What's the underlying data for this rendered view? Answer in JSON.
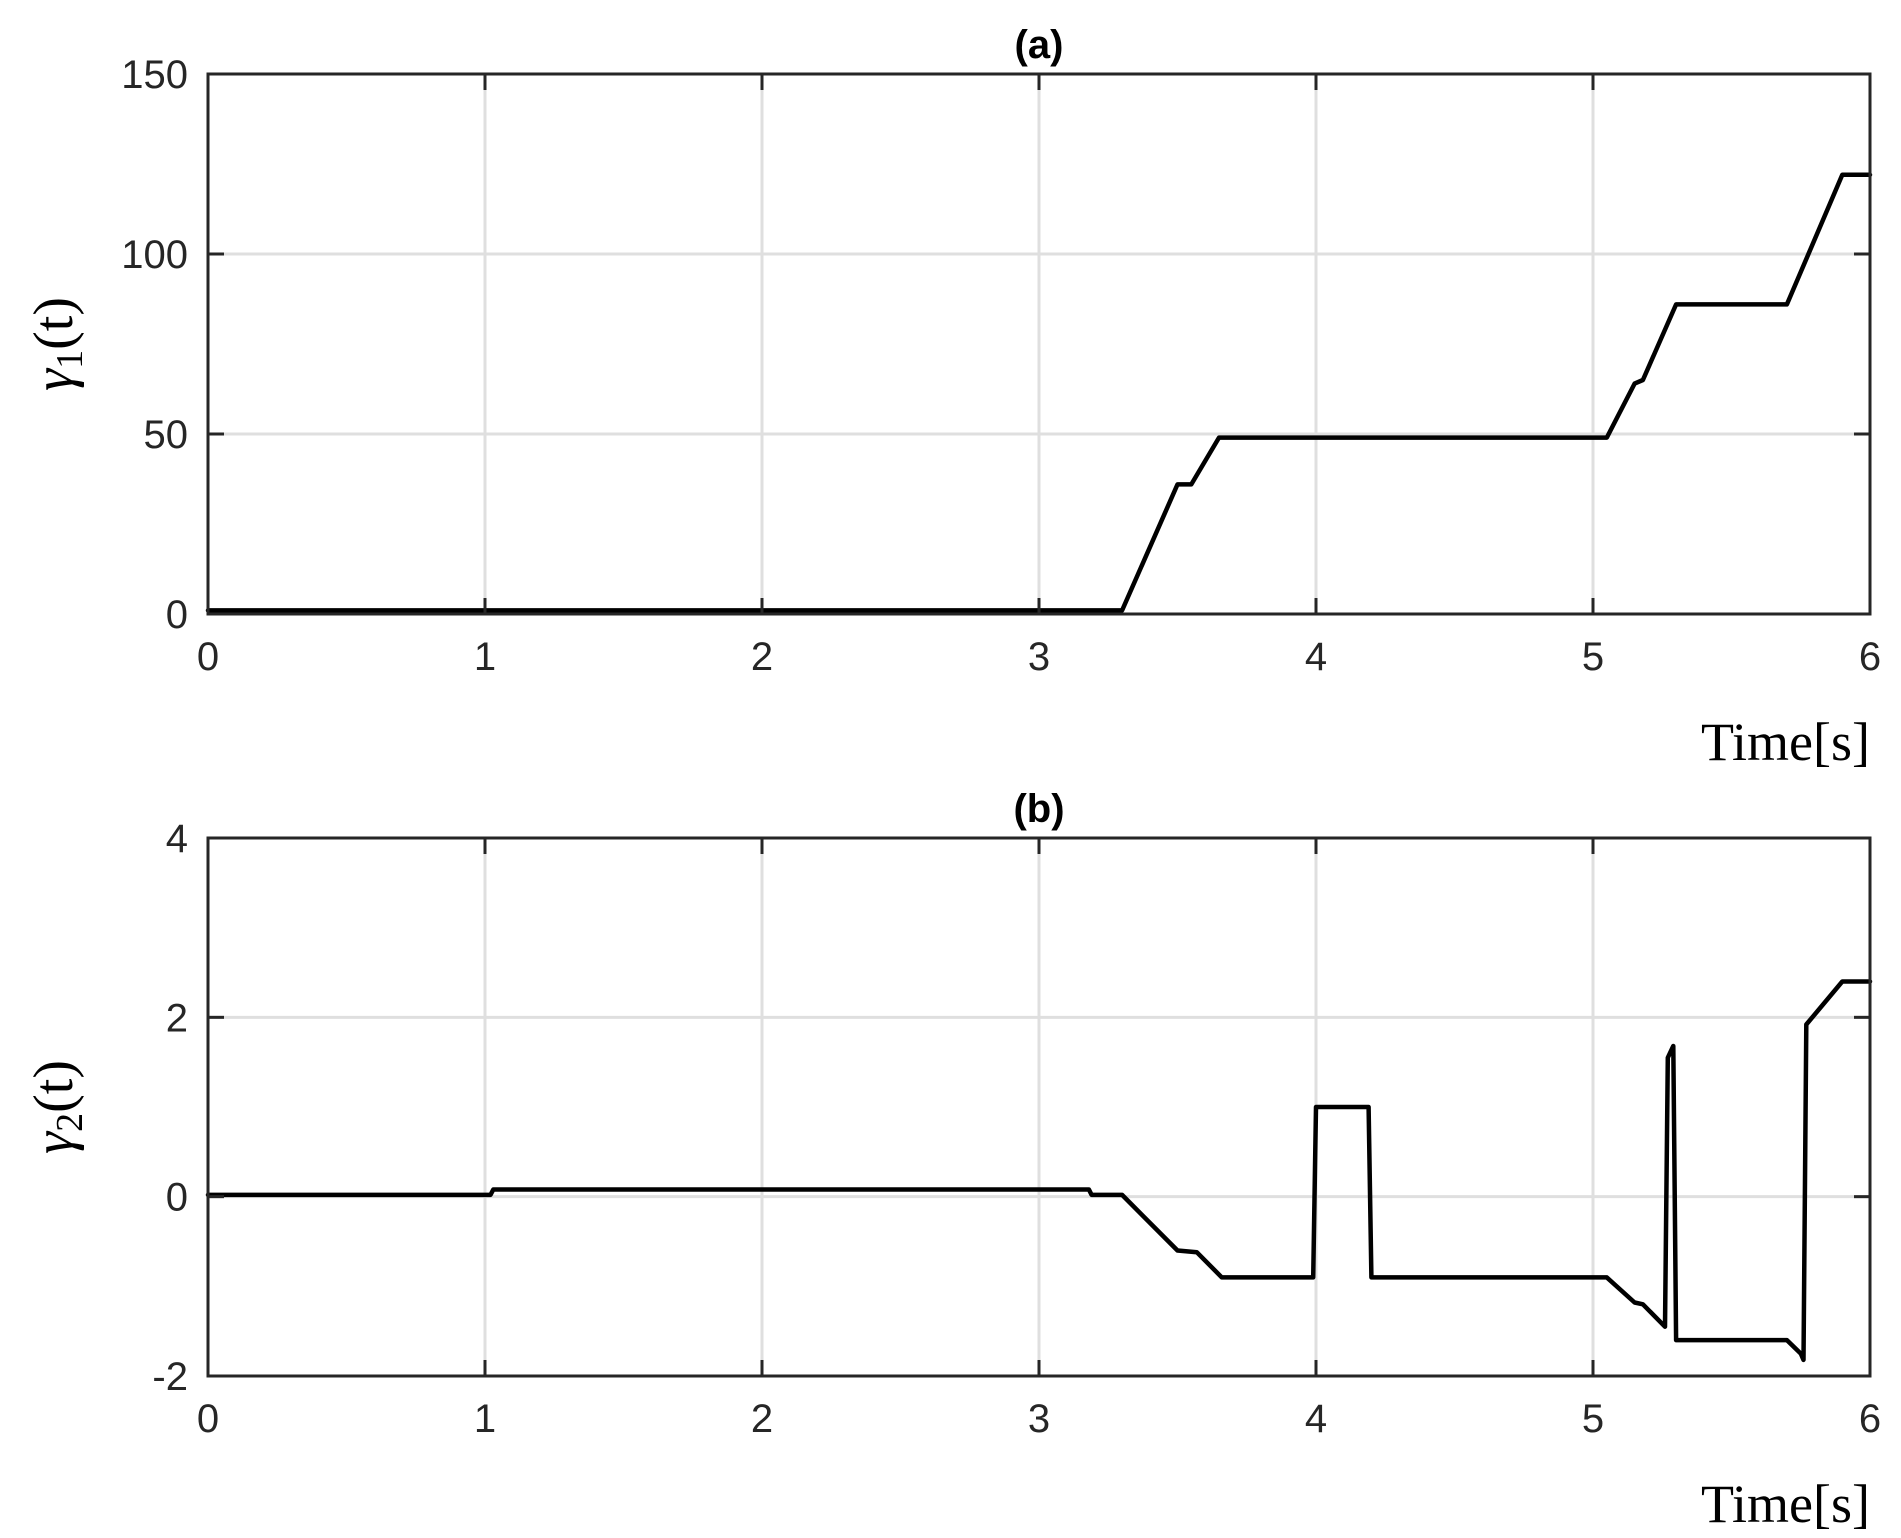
{
  "chart_data": [
    {
      "type": "line",
      "title": "(a)",
      "xlabel": "Time[s]",
      "ylabel": "γ1(t)",
      "ylabel_main": "γ",
      "ylabel_sub": "1",
      "ylabel_arg": "(t)",
      "xlim": [
        0,
        6
      ],
      "ylim": [
        0,
        150
      ],
      "xticks": [
        0,
        1,
        2,
        3,
        4,
        5,
        6
      ],
      "yticks": [
        0,
        50,
        100,
        150
      ],
      "xtick_labels": [
        "0",
        "1",
        "2",
        "3",
        "4",
        "5",
        "6"
      ],
      "ytick_labels": [
        "0",
        "50",
        "100",
        "150"
      ],
      "grid": true,
      "series": [
        {
          "color": "#000000",
          "x": [
            0,
            3.3,
            3.5,
            3.55,
            3.65,
            5.05,
            5.15,
            5.18,
            5.3,
            5.7,
            5.9,
            6.0
          ],
          "y": [
            1,
            1,
            36,
            36,
            49,
            49,
            64,
            65,
            86,
            86,
            122,
            122
          ]
        }
      ]
    },
    {
      "type": "line",
      "title": "(b)",
      "xlabel": "Time[s]",
      "ylabel": "γ2(t)",
      "ylabel_main": "γ",
      "ylabel_sub": "2",
      "ylabel_arg": "(t)",
      "xlim": [
        0,
        6
      ],
      "ylim": [
        -2,
        4
      ],
      "xticks": [
        0,
        1,
        2,
        3,
        4,
        5,
        6
      ],
      "yticks": [
        -2,
        0,
        2,
        4
      ],
      "xtick_labels": [
        "0",
        "1",
        "2",
        "3",
        "4",
        "5",
        "6"
      ],
      "ytick_labels": [
        "-2",
        "0",
        "2",
        "4"
      ],
      "grid": true,
      "series": [
        {
          "color": "#000000",
          "x": [
            0,
            1.02,
            1.03,
            3.18,
            3.19,
            3.3,
            3.5,
            3.57,
            3.66,
            3.99,
            4.0,
            4.19,
            4.2,
            5.05,
            5.15,
            5.18,
            5.26,
            5.27,
            5.29,
            5.3,
            5.7,
            5.75,
            5.76,
            5.77,
            5.9,
            6.0
          ],
          "y": [
            0.02,
            0.02,
            0.08,
            0.08,
            0.02,
            0.02,
            -0.6,
            -0.62,
            -0.9,
            -0.9,
            1.0,
            1.0,
            -0.9,
            -0.9,
            -1.18,
            -1.2,
            -1.45,
            1.55,
            1.68,
            -1.6,
            -1.6,
            -1.75,
            -1.82,
            1.92,
            2.4,
            2.4
          ]
        }
      ]
    }
  ]
}
